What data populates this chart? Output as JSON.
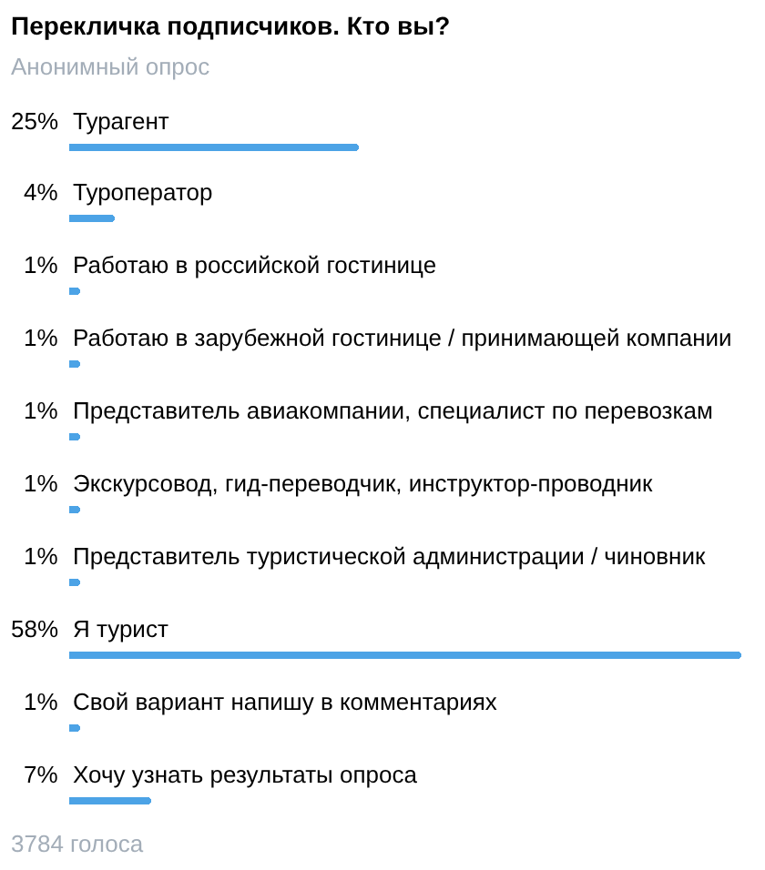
{
  "chart_data": {
    "type": "bar",
    "orientation": "horizontal",
    "title": "Перекличка подписчиков. Кто вы?",
    "subtitle": "Анонимный опрос",
    "categories": [
      "Турагент",
      "Туроператор",
      "Работаю в российской гостинице",
      "Работаю в зарубежной гостинице / принимающей компании",
      "Представитель авиакомпании, специалист по перевозкам",
      "Экскурсовод, гид-переводчик, инструктор-проводник",
      "Представитель туристической администрации / чиновник",
      "Я турист",
      "Свой вариант напишу в комментариях",
      "Хочу узнать результаты опроса"
    ],
    "values": [
      25,
      4,
      1,
      1,
      1,
      1,
      1,
      58,
      1,
      7
    ],
    "value_labels": [
      "25%",
      "4%",
      "1%",
      "1%",
      "1%",
      "1%",
      "1%",
      "58%",
      "1%",
      "7%"
    ],
    "color": "#4ca3e6",
    "annotations": [
      "3784 голоса"
    ]
  }
}
